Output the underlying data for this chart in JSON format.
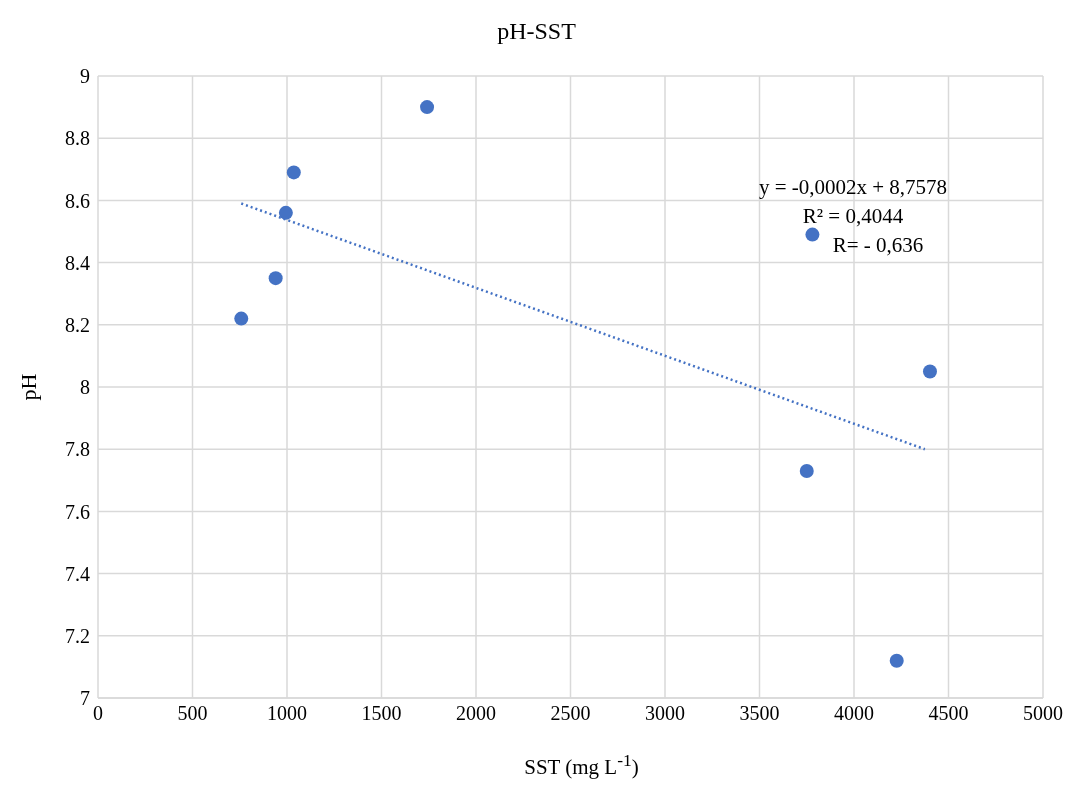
{
  "chart_data": {
    "type": "scatter",
    "title": "pH-SST",
    "xlabel": "SST (mg L$^{-1}$)",
    "ylabel": "pH",
    "series": [
      {
        "type": "scatter",
        "color": "#4472c4",
        "marker": "circle",
        "x": [
          758,
          940,
          994,
          1036,
          1741,
          3750,
          3780,
          4226,
          4402
        ],
        "values": [
          8.22,
          8.35,
          8.56,
          8.69,
          8.9,
          7.73,
          8.49,
          7.12,
          8.05
        ]
      },
      {
        "type": "line",
        "color": "#4472c4",
        "marker": "none",
        "line_style": "dotted",
        "x": [
          758,
          4375
        ],
        "values": [
          8.59,
          7.8
        ]
      }
    ],
    "annotations": [
      "y = -0,0002x + 8,7578",
      "R² = 0,4044",
      "R= - 0,636"
    ],
    "xlim": [
      0,
      5000
    ],
    "xticks": [
      0,
      500,
      1000,
      1500,
      2000,
      2500,
      3000,
      3500,
      4000,
      4500,
      5000
    ],
    "ylim": [
      7,
      9
    ],
    "yticks": [
      7,
      7.2,
      7.4,
      7.6,
      7.8,
      8,
      8.2,
      8.4,
      8.6,
      8.8,
      9
    ],
    "grid": true
  }
}
